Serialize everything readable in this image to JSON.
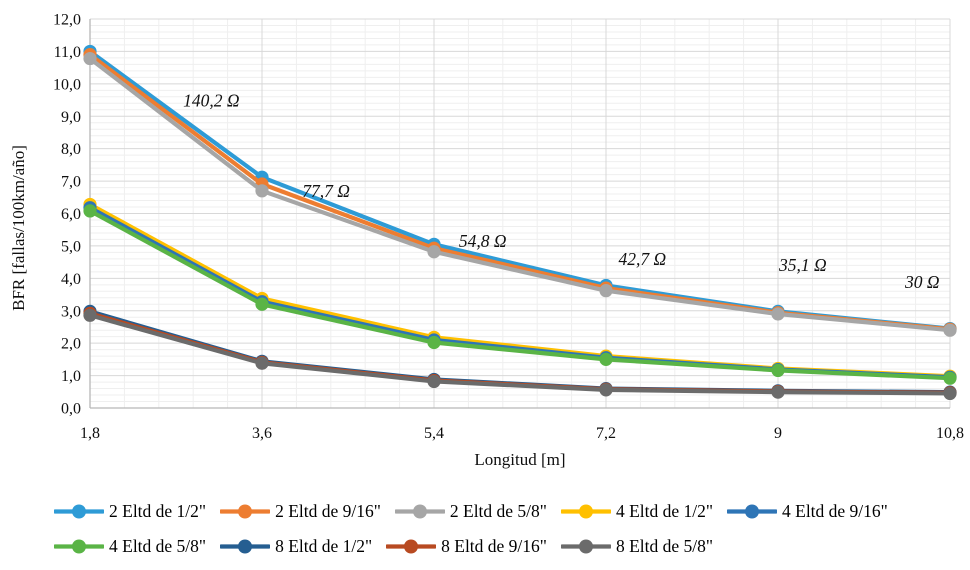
{
  "chart_data": {
    "type": "line",
    "title": "",
    "xlabel": "Longitud [m]",
    "ylabel": "BFR [fallas/100km/año]",
    "x": [
      1.8,
      3.6,
      5.4,
      7.2,
      9,
      10.8
    ],
    "x_tick_labels": [
      "1,8",
      "3,6",
      "5,4",
      "7,2",
      "9",
      "10,8"
    ],
    "y_tick_labels": [
      "0,0",
      "1,0",
      "2,0",
      "3,0",
      "4,0",
      "5,0",
      "6,0",
      "7,0",
      "8,0",
      "9,0",
      "10,0",
      "11,0",
      "12,0"
    ],
    "xlim": [
      1.8,
      10.8
    ],
    "ylim": [
      0,
      12
    ],
    "y_major_step": 1.0,
    "y_minor_step": 0.2,
    "x_major_step": 1.8,
    "x_minor_step": 0.36,
    "grid": true,
    "legend_position": "bottom",
    "legend_rows": [
      5,
      4
    ],
    "colors": {
      "minor_grid": "#efefef",
      "major_grid": "#d8d8d8",
      "axis_line": "#b7b7b7",
      "text": "#0f0f0f"
    },
    "series": [
      {
        "name": "2 Eltd de 1/2\"",
        "color": "#2e9bd6",
        "values": [
          11.0,
          7.12,
          5.05,
          3.78,
          2.98,
          2.45
        ]
      },
      {
        "name": "2 Eltd de 9/16\"",
        "color": "#ed7d31",
        "values": [
          10.9,
          6.91,
          4.93,
          3.7,
          2.94,
          2.43
        ]
      },
      {
        "name": "2 Eltd de 5/8\"",
        "color": "#a6a6a6",
        "values": [
          10.78,
          6.7,
          4.82,
          3.62,
          2.9,
          2.4
        ]
      },
      {
        "name": "4 Eltd de 1/2\"",
        "color": "#ffc000",
        "values": [
          6.28,
          3.38,
          2.18,
          1.6,
          1.22,
          0.98
        ]
      },
      {
        "name": "4 Eltd de 9/16\"",
        "color": "#2e75b6",
        "values": [
          6.18,
          3.28,
          2.1,
          1.55,
          1.19,
          0.95
        ]
      },
      {
        "name": "4 Eltd de 5/8\"",
        "color": "#5ab446",
        "values": [
          6.08,
          3.2,
          2.02,
          1.5,
          1.16,
          0.92
        ]
      },
      {
        "name": "8 Eltd de 1/2\"",
        "color": "#255e91",
        "values": [
          2.98,
          1.44,
          0.88,
          0.6,
          0.53,
          0.49
        ]
      },
      {
        "name": "8 Eltd de 9/16\"",
        "color": "#b84a21",
        "values": [
          2.92,
          1.41,
          0.85,
          0.58,
          0.51,
          0.47
        ]
      },
      {
        "name": "8 Eltd de 5/8\"",
        "color": "#6b6b6b",
        "values": [
          2.86,
          1.38,
          0.82,
          0.56,
          0.49,
          0.45
        ]
      }
    ],
    "annotations": [
      {
        "label": "140,2 Ω",
        "x": 3.07,
        "y": 9.48
      },
      {
        "label": "77,7 Ω",
        "x": 4.27,
        "y": 6.7
      },
      {
        "label": "54,8 Ω",
        "x": 5.91,
        "y": 5.15
      },
      {
        "label": "42,7 Ω",
        "x": 7.58,
        "y": 4.6
      },
      {
        "label": "35,1 Ω",
        "x": 9.26,
        "y": 4.41
      },
      {
        "label": "30 Ω",
        "x": 10.51,
        "y": 3.89
      }
    ]
  }
}
